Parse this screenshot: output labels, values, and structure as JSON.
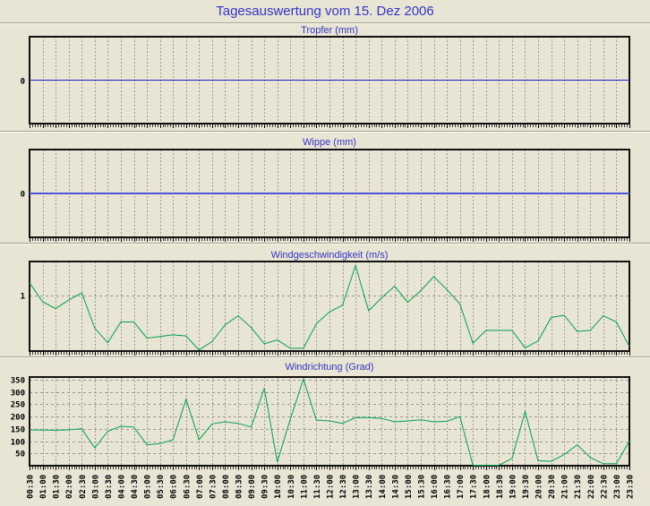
{
  "page": {
    "title": "Tagesauswertung vom 15. Dez 2006"
  },
  "colors": {
    "background": "#e8e5d5",
    "title_text": "#3434cc",
    "grid": "#9a9a90",
    "plot_border": "#111111",
    "axis_text": "#000000",
    "tropfer_line": "#2323c8",
    "wippe_line": "#5353d6",
    "wind_line": "#00a050"
  },
  "chart_data": {
    "type": "line",
    "title": "Tagesauswertung vom 15. Dez 2006",
    "categories": [
      "00:30",
      "01:00",
      "01:30",
      "02:00",
      "02:30",
      "03:00",
      "03:30",
      "04:00",
      "04:30",
      "05:00",
      "05:30",
      "06:00",
      "06:30",
      "07:00",
      "07:30",
      "08:00",
      "08:30",
      "09:00",
      "09:30",
      "10:00",
      "10:30",
      "11:00",
      "11:30",
      "12:00",
      "12:30",
      "13:00",
      "13:30",
      "14:00",
      "14:30",
      "15:00",
      "15:30",
      "16:00",
      "16:30",
      "17:00",
      "17:30",
      "18:00",
      "18:30",
      "19:00",
      "19:30",
      "20:00",
      "20:30",
      "21:00",
      "21:30",
      "22:00",
      "22:30",
      "23:00",
      "23:30"
    ],
    "charts": [
      {
        "title": "Tropfer (mm)",
        "ylim": [
          -1,
          1
        ],
        "yticks": [
          {
            "v": 0,
            "label": "0"
          }
        ],
        "grid_at_yticks": false,
        "series_constant": 0,
        "line_color": "#2323c8",
        "line_width": 1
      },
      {
        "title": "Wippe (mm)",
        "ylim": [
          -1,
          1
        ],
        "yticks": [
          {
            "v": 0,
            "label": "0"
          }
        ],
        "grid_at_yticks": false,
        "series_constant": 0,
        "line_color": "#5353d6",
        "line_width": 2
      },
      {
        "title": "Windgeschwindigkeit (m/s)",
        "ylim": [
          0,
          1.6
        ],
        "yticks": [
          {
            "v": 1,
            "label": "1"
          }
        ],
        "grid_at_yticks": true,
        "values": [
          1.22,
          0.88,
          0.76,
          0.91,
          1.04,
          0.41,
          0.15,
          0.52,
          0.52,
          0.23,
          0.26,
          0.29,
          0.27,
          0.02,
          0.17,
          0.47,
          0.63,
          0.42,
          0.13,
          0.2,
          0.05,
          0.05,
          0.49,
          0.7,
          0.82,
          1.53,
          0.72,
          0.95,
          1.16,
          0.87,
          1.08,
          1.33,
          1.1,
          0.84,
          0.14,
          0.37,
          0.37,
          0.37,
          0.06,
          0.18,
          0.6,
          0.64,
          0.35,
          0.37,
          0.63,
          0.52,
          0.08
        ],
        "line_color": "#00a050",
        "line_width": 1
      },
      {
        "title": "Windrichtung (Grad)",
        "ylim": [
          0,
          360
        ],
        "yticks": [
          {
            "v": 50,
            "label": "50"
          },
          {
            "v": 100,
            "label": "100"
          },
          {
            "v": 150,
            "label": "150"
          },
          {
            "v": 200,
            "label": "200"
          },
          {
            "v": 250,
            "label": "250"
          },
          {
            "v": 300,
            "label": "300"
          },
          {
            "v": 350,
            "label": "350"
          }
        ],
        "grid_at_yticks": true,
        "values": [
          145,
          145,
          144,
          146,
          150,
          72,
          140,
          160,
          157,
          85,
          90,
          105,
          270,
          105,
          170,
          178,
          172,
          157,
          315,
          15,
          190,
          352,
          185,
          182,
          172,
          195,
          196,
          192,
          178,
          182,
          186,
          178,
          180,
          200,
          2,
          2,
          2,
          30,
          220,
          20,
          18,
          45,
          85,
          33,
          8,
          8,
          100
        ],
        "line_color": "#00a050",
        "line_width": 1
      }
    ]
  }
}
